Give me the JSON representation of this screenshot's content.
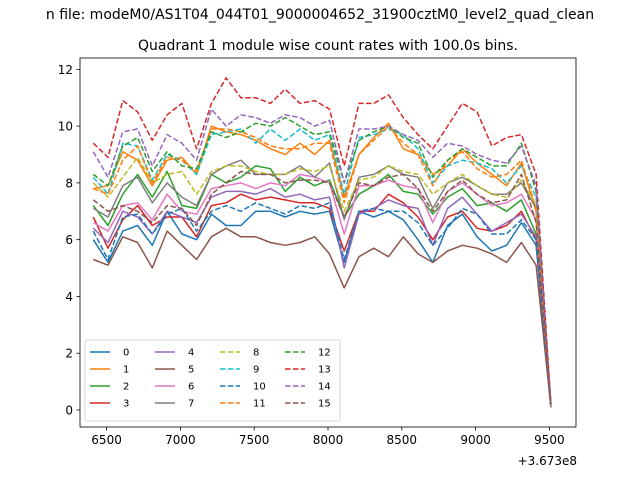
{
  "suptitle": "n file: modeM0/AS1T04_044T01_9000004652_31900cztM0_level2_quad_clean",
  "chart_data": {
    "type": "line",
    "title": "Quadrant 1 module wise count rates with 100.0s bins.",
    "xlabel": "",
    "ylabel": "",
    "x_offset_label": "+3.673e8",
    "xlim": [
      6320,
      9680
    ],
    "ylim": [
      -0.6,
      12.4
    ],
    "xticks": [
      6500,
      7000,
      7500,
      8000,
      8500,
      9000,
      9500
    ],
    "yticks": [
      0,
      2,
      4,
      6,
      8,
      10,
      12
    ],
    "grid": false,
    "legend": {
      "placement": "lower-left",
      "columns": 4
    },
    "x": [
      6410,
      6510,
      6610,
      6710,
      6810,
      6910,
      7010,
      7110,
      7210,
      7310,
      7410,
      7510,
      7610,
      7710,
      7810,
      7910,
      8010,
      8110,
      8210,
      8310,
      8410,
      8510,
      8610,
      8710,
      8810,
      8910,
      9010,
      9110,
      9210,
      9310,
      9410,
      9510
    ],
    "series": [
      {
        "name": "0",
        "color": "#1f77b4",
        "dash": "solid",
        "values": [
          6.0,
          5.2,
          6.3,
          6.5,
          5.8,
          7.0,
          6.2,
          6.0,
          6.9,
          6.5,
          6.5,
          7.0,
          7.0,
          6.8,
          7.0,
          6.9,
          7.0,
          5.2,
          7.0,
          6.8,
          7.0,
          6.7,
          6.0,
          5.2,
          6.5,
          6.9,
          6.1,
          5.6,
          5.8,
          6.6,
          5.8,
          0.1
        ]
      },
      {
        "name": "1",
        "color": "#ff7f0e",
        "dash": "solid",
        "values": [
          7.8,
          7.9,
          9.1,
          8.8,
          7.9,
          8.8,
          8.9,
          8.3,
          10.0,
          9.8,
          9.7,
          9.5,
          9.2,
          9.0,
          9.4,
          9.0,
          9.5,
          7.5,
          9.0,
          9.6,
          10.1,
          9.2,
          9.0,
          8.3,
          8.6,
          9.2,
          8.7,
          8.3,
          7.9,
          8.7,
          7.0,
          0.2
        ]
      },
      {
        "name": "2",
        "color": "#2ca02c",
        "dash": "solid",
        "values": [
          7.2,
          6.5,
          7.6,
          8.3,
          7.5,
          8.4,
          7.2,
          7.1,
          8.3,
          8.0,
          8.2,
          8.6,
          8.5,
          7.7,
          8.2,
          7.9,
          8.1,
          6.8,
          7.6,
          7.9,
          8.3,
          7.7,
          7.6,
          6.9,
          7.5,
          7.8,
          7.2,
          7.3,
          7.0,
          7.4,
          6.2,
          0.1
        ]
      },
      {
        "name": "3",
        "color": "#d62728",
        "dash": "solid",
        "values": [
          6.8,
          5.7,
          6.7,
          7.2,
          6.5,
          6.8,
          6.8,
          6.1,
          7.2,
          7.3,
          7.6,
          7.4,
          7.5,
          7.4,
          7.3,
          7.3,
          7.1,
          5.6,
          7.0,
          7.0,
          7.6,
          7.3,
          6.8,
          6.0,
          6.8,
          7.0,
          6.4,
          6.3,
          6.5,
          7.0,
          6.0,
          0.1
        ]
      },
      {
        "name": "4",
        "color": "#9467bd",
        "dash": "solid",
        "values": [
          6.4,
          5.9,
          7.0,
          6.8,
          6.2,
          7.0,
          6.8,
          6.6,
          7.5,
          7.7,
          7.7,
          7.6,
          7.8,
          7.5,
          7.6,
          7.4,
          7.5,
          5.0,
          6.9,
          7.1,
          7.4,
          7.2,
          7.1,
          5.8,
          7.1,
          7.5,
          6.9,
          6.3,
          6.6,
          6.9,
          6.1,
          0.1
        ]
      },
      {
        "name": "5",
        "color": "#8c564b",
        "dash": "solid",
        "values": [
          5.3,
          5.1,
          6.1,
          5.9,
          5.0,
          6.3,
          5.8,
          5.3,
          6.1,
          6.4,
          6.1,
          6.1,
          5.9,
          5.8,
          5.9,
          6.1,
          5.5,
          4.3,
          5.4,
          5.7,
          5.4,
          6.1,
          5.5,
          5.2,
          5.6,
          5.8,
          5.7,
          5.5,
          5.2,
          5.9,
          5.1,
          0.1
        ]
      },
      {
        "name": "6",
        "color": "#e377c2",
        "dash": "solid",
        "values": [
          6.6,
          6.3,
          7.2,
          7.3,
          6.7,
          7.6,
          7.0,
          6.9,
          7.8,
          7.9,
          8.0,
          7.8,
          8.0,
          7.9,
          8.3,
          8.2,
          8.0,
          6.2,
          7.9,
          7.9,
          8.1,
          7.9,
          7.8,
          6.6,
          7.7,
          8.0,
          7.6,
          7.2,
          7.3,
          7.6,
          6.7,
          0.1
        ]
      },
      {
        "name": "7",
        "color": "#7f7f7f",
        "dash": "solid",
        "values": [
          7.1,
          6.8,
          7.9,
          8.2,
          7.3,
          8.0,
          7.5,
          7.2,
          8.3,
          8.6,
          8.8,
          8.3,
          8.3,
          8.3,
          8.6,
          8.2,
          8.7,
          6.7,
          8.2,
          8.3,
          8.6,
          8.3,
          8.2,
          7.1,
          8.0,
          8.2,
          7.9,
          7.6,
          7.6,
          8.0,
          7.1,
          0.1
        ]
      },
      {
        "name": "8",
        "color": "#bcbd22",
        "dash": "dashed",
        "values": [
          8.0,
          7.5,
          8.2,
          8.9,
          8.0,
          8.3,
          8.4,
          7.6,
          8.4,
          8.6,
          8.6,
          8.4,
          8.3,
          8.3,
          8.5,
          8.4,
          8.6,
          7.0,
          8.1,
          8.2,
          8.6,
          8.4,
          8.3,
          7.6,
          8.0,
          8.3,
          7.9,
          7.6,
          7.5,
          8.1,
          7.2,
          0.1
        ]
      },
      {
        "name": "9",
        "color": "#17becf",
        "dash": "dashed",
        "values": [
          8.2,
          7.6,
          9.4,
          9.3,
          8.1,
          9.0,
          8.8,
          8.3,
          9.7,
          9.8,
          9.9,
          9.4,
          9.9,
          9.5,
          9.9,
          9.5,
          9.7,
          7.6,
          9.6,
          9.7,
          9.9,
          9.7,
          9.2,
          8.0,
          8.6,
          8.8,
          8.7,
          8.5,
          8.0,
          8.6,
          7.5,
          0.2
        ]
      },
      {
        "name": "10",
        "color": "#1f77b4",
        "dash": "dashed",
        "values": [
          6.3,
          5.3,
          6.8,
          6.9,
          6.2,
          6.9,
          7.1,
          6.3,
          7.0,
          7.2,
          7.0,
          7.3,
          7.1,
          6.9,
          7.2,
          7.1,
          7.3,
          5.3,
          7.0,
          7.1,
          7.0,
          7.0,
          6.6,
          5.8,
          6.4,
          7.1,
          6.9,
          6.2,
          6.2,
          6.7,
          6.0,
          0.1
        ]
      },
      {
        "name": "11",
        "color": "#ff7f0e",
        "dash": "dashed",
        "values": [
          7.8,
          7.6,
          8.8,
          9.3,
          8.0,
          8.9,
          8.8,
          8.4,
          9.9,
          9.9,
          9.8,
          9.6,
          9.3,
          9.2,
          9.2,
          9.4,
          9.4,
          7.3,
          9.0,
          9.5,
          10.0,
          9.4,
          9.0,
          7.9,
          8.8,
          9.1,
          8.5,
          8.2,
          8.3,
          8.8,
          7.1,
          0.2
        ]
      },
      {
        "name": "12",
        "color": "#2ca02c",
        "dash": "dashed",
        "values": [
          8.3,
          7.9,
          9.3,
          9.6,
          8.4,
          9.1,
          8.6,
          8.5,
          9.8,
          9.6,
          9.8,
          10.1,
          10.0,
          10.3,
          10.0,
          9.7,
          9.8,
          8.0,
          9.5,
          9.8,
          10.0,
          9.6,
          9.4,
          8.2,
          8.8,
          9.2,
          8.9,
          8.6,
          8.6,
          9.4,
          7.7,
          0.2
        ]
      },
      {
        "name": "13",
        "color": "#d62728",
        "dash": "dashed",
        "values": [
          9.4,
          8.9,
          10.9,
          10.5,
          9.5,
          10.4,
          10.8,
          9.2,
          10.8,
          11.7,
          11.0,
          11.0,
          10.8,
          11.3,
          10.8,
          10.9,
          10.6,
          8.6,
          10.8,
          10.8,
          11.1,
          10.3,
          9.7,
          9.2,
          10.0,
          10.8,
          10.5,
          9.3,
          9.6,
          9.7,
          8.3,
          0.2
        ]
      },
      {
        "name": "14",
        "color": "#9467bd",
        "dash": "dashed",
        "values": [
          9.1,
          8.2,
          9.8,
          9.9,
          8.6,
          9.7,
          9.4,
          8.8,
          10.6,
          10.0,
          10.4,
          10.3,
          10.1,
          10.4,
          10.3,
          10.0,
          10.2,
          8.0,
          9.9,
          9.9,
          10.0,
          9.7,
          9.5,
          8.9,
          9.4,
          9.3,
          9.0,
          8.8,
          8.7,
          9.3,
          7.9,
          0.2
        ]
      },
      {
        "name": "15",
        "color": "#8c564b",
        "dash": "dashed",
        "values": [
          7.4,
          7.0,
          7.2,
          7.0,
          6.6,
          7.2,
          7.1,
          6.5,
          7.6,
          8.0,
          8.4,
          8.3,
          8.3,
          8.0,
          8.1,
          8.1,
          8.0,
          6.8,
          8.0,
          7.9,
          8.2,
          8.3,
          7.8,
          7.0,
          7.7,
          8.1,
          7.6,
          7.3,
          7.4,
          8.3,
          6.6,
          0.1
        ]
      }
    ]
  }
}
